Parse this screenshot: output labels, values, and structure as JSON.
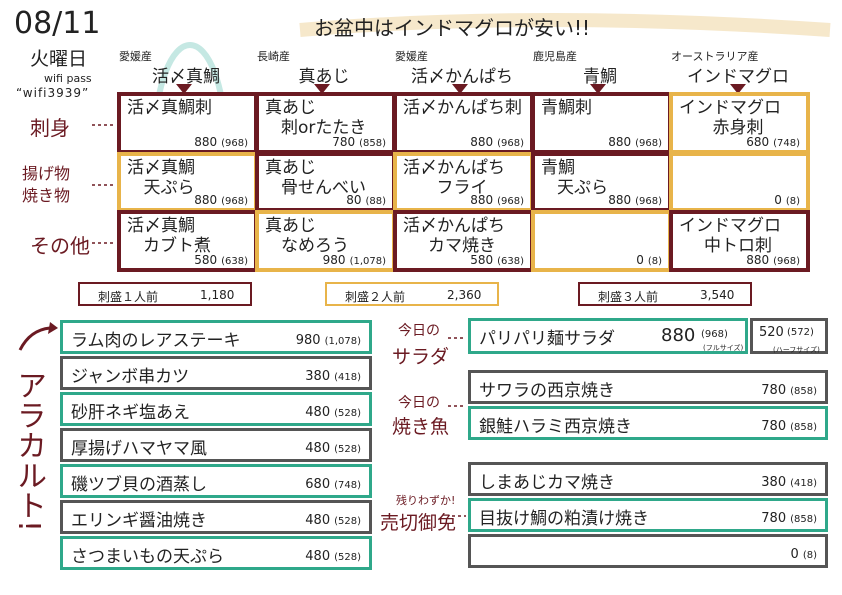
{
  "header": {
    "date": "08/11",
    "day": "火曜日",
    "wifi": "wifi pass",
    "password": "“wifi3939”",
    "headline": "お盆中はインドマグロが安い!!"
  },
  "columns": [
    {
      "origin": "愛媛産",
      "fish": "活〆真鯛"
    },
    {
      "origin": "長崎産",
      "fish": "真あじ"
    },
    {
      "origin": "愛媛産",
      "fish": "活〆かんぱち"
    },
    {
      "origin": "鹿児島産",
      "fish": "青鯛"
    },
    {
      "origin": "オーストラリア産",
      "fish": "インドマグロ"
    }
  ],
  "rows": [
    {
      "label": [
        "刺身"
      ],
      "cells": [
        {
          "name": [
            "活〆真鯛刺"
          ],
          "price": "880",
          "tax": "(968)"
        },
        {
          "name": [
            "真あじ",
            "刺orたたき"
          ],
          "price": "780",
          "tax": "(858)"
        },
        {
          "name": [
            "活〆かんぱち刺"
          ],
          "price": "880",
          "tax": "(968)"
        },
        {
          "name": [
            "青鯛刺"
          ],
          "price": "880",
          "tax": "(968)"
        },
        {
          "name": [
            "インドマグロ",
            "赤身刺"
          ],
          "price": "680",
          "tax": "(748)"
        }
      ]
    },
    {
      "label": [
        "揚げ物",
        "焼き物"
      ],
      "cells": [
        {
          "name": [
            "活〆真鯛",
            "天ぷら"
          ],
          "price": "880",
          "tax": "(968)"
        },
        {
          "name": [
            "真あじ",
            "骨せんべい"
          ],
          "price": "80",
          "tax": "(88)"
        },
        {
          "name": [
            "活〆かんぱち",
            "フライ"
          ],
          "price": "880",
          "tax": "(968)"
        },
        {
          "name": [
            "青鯛",
            "天ぷら"
          ],
          "price": "880",
          "tax": "(968)"
        },
        {
          "name": [],
          "price": "0",
          "tax": "(8)"
        }
      ]
    },
    {
      "label": [
        "その他"
      ],
      "cells": [
        {
          "name": [
            "活〆真鯛",
            "カブト煮"
          ],
          "price": "580",
          "tax": "(638)"
        },
        {
          "name": [
            "真あじ",
            "なめろう"
          ],
          "price": "980",
          "tax": "(1,078)"
        },
        {
          "name": [
            "活〆かんぱち",
            "カマ焼き"
          ],
          "price": "580",
          "tax": "(638)"
        },
        {
          "name": [],
          "price": "0",
          "tax": "(8)"
        },
        {
          "name": [
            "インドマグロ",
            "中トロ刺"
          ],
          "price": "880",
          "tax": "(968)"
        }
      ]
    }
  ],
  "platters": [
    {
      "name": "刺盛１人前",
      "price": "1,180"
    },
    {
      "name": "刺盛２人前",
      "price": "2,360"
    },
    {
      "name": "刺盛３人前",
      "price": "3,540"
    }
  ],
  "alacarte": {
    "label": "アラカルト!",
    "items": [
      {
        "name": "ラム肉のレアステーキ",
        "price": "980",
        "tax": "(1,078)"
      },
      {
        "name": "ジャンボ串カツ",
        "price": "380",
        "tax": "(418)"
      },
      {
        "name": "砂肝ネギ塩あえ",
        "price": "480",
        "tax": "(528)"
      },
      {
        "name": "厚揚げハマヤマ風",
        "price": "480",
        "tax": "(528)"
      },
      {
        "name": "磯ツブ貝の酒蒸し",
        "price": "680",
        "tax": "(748)"
      },
      {
        "name": "エリンギ醤油焼き",
        "price": "480",
        "tax": "(528)"
      },
      {
        "name": "さつまいもの天ぷら",
        "price": "480",
        "tax": "(528)"
      }
    ]
  },
  "salad": {
    "label": [
      "今日の",
      "サラダ"
    ],
    "name": "パリパリ麺サラダ",
    "price": "880",
    "tax": "(968)",
    "size": "(フルサイズ)",
    "half_price": "520",
    "half_tax": "(572)",
    "half_size": "(ハーフサイズ)"
  },
  "grilled": {
    "label": [
      "今日の",
      "焼き魚"
    ],
    "items": [
      {
        "name": "サワラの西京焼き",
        "price": "780",
        "tax": "(858)"
      },
      {
        "name": "銀鮭ハラミ西京焼き",
        "price": "780",
        "tax": "(858)"
      }
    ]
  },
  "soldout": {
    "label": [
      "残りわずか!",
      "売切御免"
    ],
    "items": [
      {
        "name": "しまあじカマ焼き",
        "price": "380",
        "tax": "(418)"
      },
      {
        "name": "目抜け鯛の粕漬け焼き",
        "price": "780",
        "tax": "(858)"
      },
      {
        "name": null,
        "price": "0",
        "tax": "(8)"
      }
    ]
  }
}
